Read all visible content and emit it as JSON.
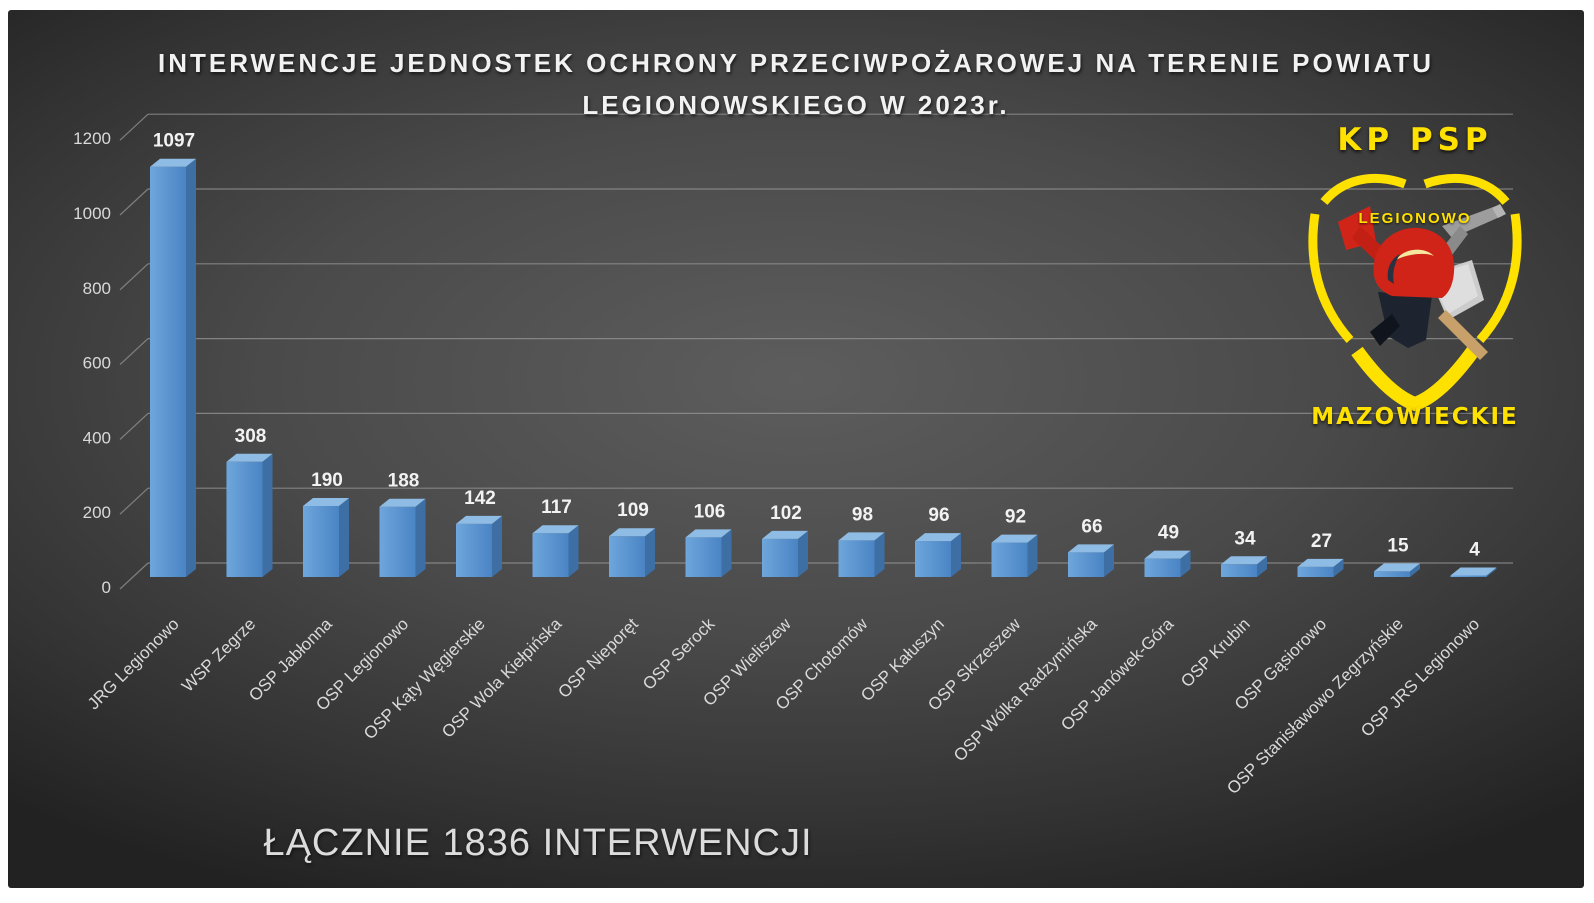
{
  "slide": {
    "title_line1": "INTERWENCJE JEDNOSTEK OCHRONY PRZECIWPOŻAROWEJ NA TERENIE POWIATU",
    "title_line2": "LEGIONOWSKIEGO W 2023r.",
    "footer": "ŁĄCZNIE 1836 INTERWENCJI"
  },
  "logo": {
    "top_text": "KP PSP",
    "shield_text": "LEGIONOWO",
    "bottom_text": "MAZOWIECKIE",
    "accent_color": "#FFE100"
  },
  "chart_data": {
    "type": "bar",
    "title": "INTERWENCJE JEDNOSTEK OCHRONY PRZECIWPOŻAROWEJ NA TERENIE POWIATU LEGIONOWSKIEGO W 2023r.",
    "categories": [
      "JRG Legionowo",
      "WSP Zegrze",
      "OSP Jabłonna",
      "OSP Legionowo",
      "OSP Kąty Węgierskie",
      "OSP Wola Kiełpińska",
      "OSP Nieporęt",
      "OSP Serock",
      "OSP Wieliszew",
      "OSP Chotomów",
      "OSP Kałuszyn",
      "OSP Skrzeszew",
      "OSP Wólka Radzymińska",
      "OSP Janówek-Góra",
      "OSP Krubin",
      "OSP Gąsiorowo",
      "OSP Stanisławowo Zegrzyńskie",
      "OSP JRS Legionowo"
    ],
    "values": [
      1097,
      308,
      190,
      188,
      142,
      117,
      109,
      106,
      102,
      98,
      96,
      92,
      66,
      49,
      34,
      27,
      15,
      4
    ],
    "xlabel": "",
    "ylabel": "",
    "ylim": [
      0,
      1200
    ],
    "yticks": [
      0,
      200,
      400,
      600,
      800,
      1000,
      1200
    ],
    "grid": true,
    "legend": false,
    "style": "3d-bar",
    "bar_front_color_left": "#6EA6DC",
    "bar_front_color_right": "#4A84C4",
    "bar_side_color": "#3D6FA5",
    "bar_top_color": "#8FBCE4",
    "gridline_color": "#969696",
    "axis_label_color": "#d9d9d9",
    "data_label_color": "#f2f2f2",
    "annotation": "ŁĄCZNIE 1836 INTERWENCJI",
    "total_interventions": 1836
  }
}
